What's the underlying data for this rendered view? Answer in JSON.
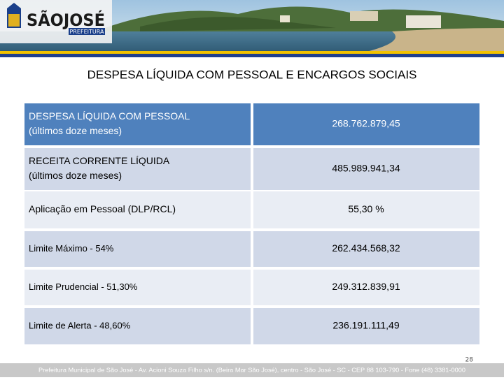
{
  "header": {
    "logo": "SÃOJOSÉ",
    "logo_sub": "PREFEITURA"
  },
  "title": "DESPESA LÍQUIDA COM PESSOAL E ENCARGOS SOCIAIS",
  "table": {
    "rows": [
      {
        "label": [
          "DESPESA LÍQUIDA COM PESSOAL",
          "(últimos doze meses)"
        ],
        "value": "268.762.879,45"
      },
      {
        "label": [
          "RECEITA CORRENTE LÍQUIDA",
          "(últimos doze meses)"
        ],
        "value": "485.989.941,34"
      },
      {
        "label": [
          "Aplicação em Pessoal  (DLP/RCL)"
        ],
        "value": "55,30 %"
      },
      {
        "label": [
          "Limite Máximo - 54%"
        ],
        "value": "262.434.568,32"
      },
      {
        "label": [
          "Limite Prudencial - 51,30%"
        ],
        "value": "249.312.839,91"
      },
      {
        "label": [
          "Limite de Alerta - 48,60%"
        ],
        "value": "236.191.111,49"
      }
    ]
  },
  "page_number": "28",
  "footer": "Prefeitura Municipal de São José - Av. Acioni Souza Filho s/n. (Beira Mar São José), centro - São José - SC - CEP 88 103-790 - Fone (48) 3381-0000"
}
